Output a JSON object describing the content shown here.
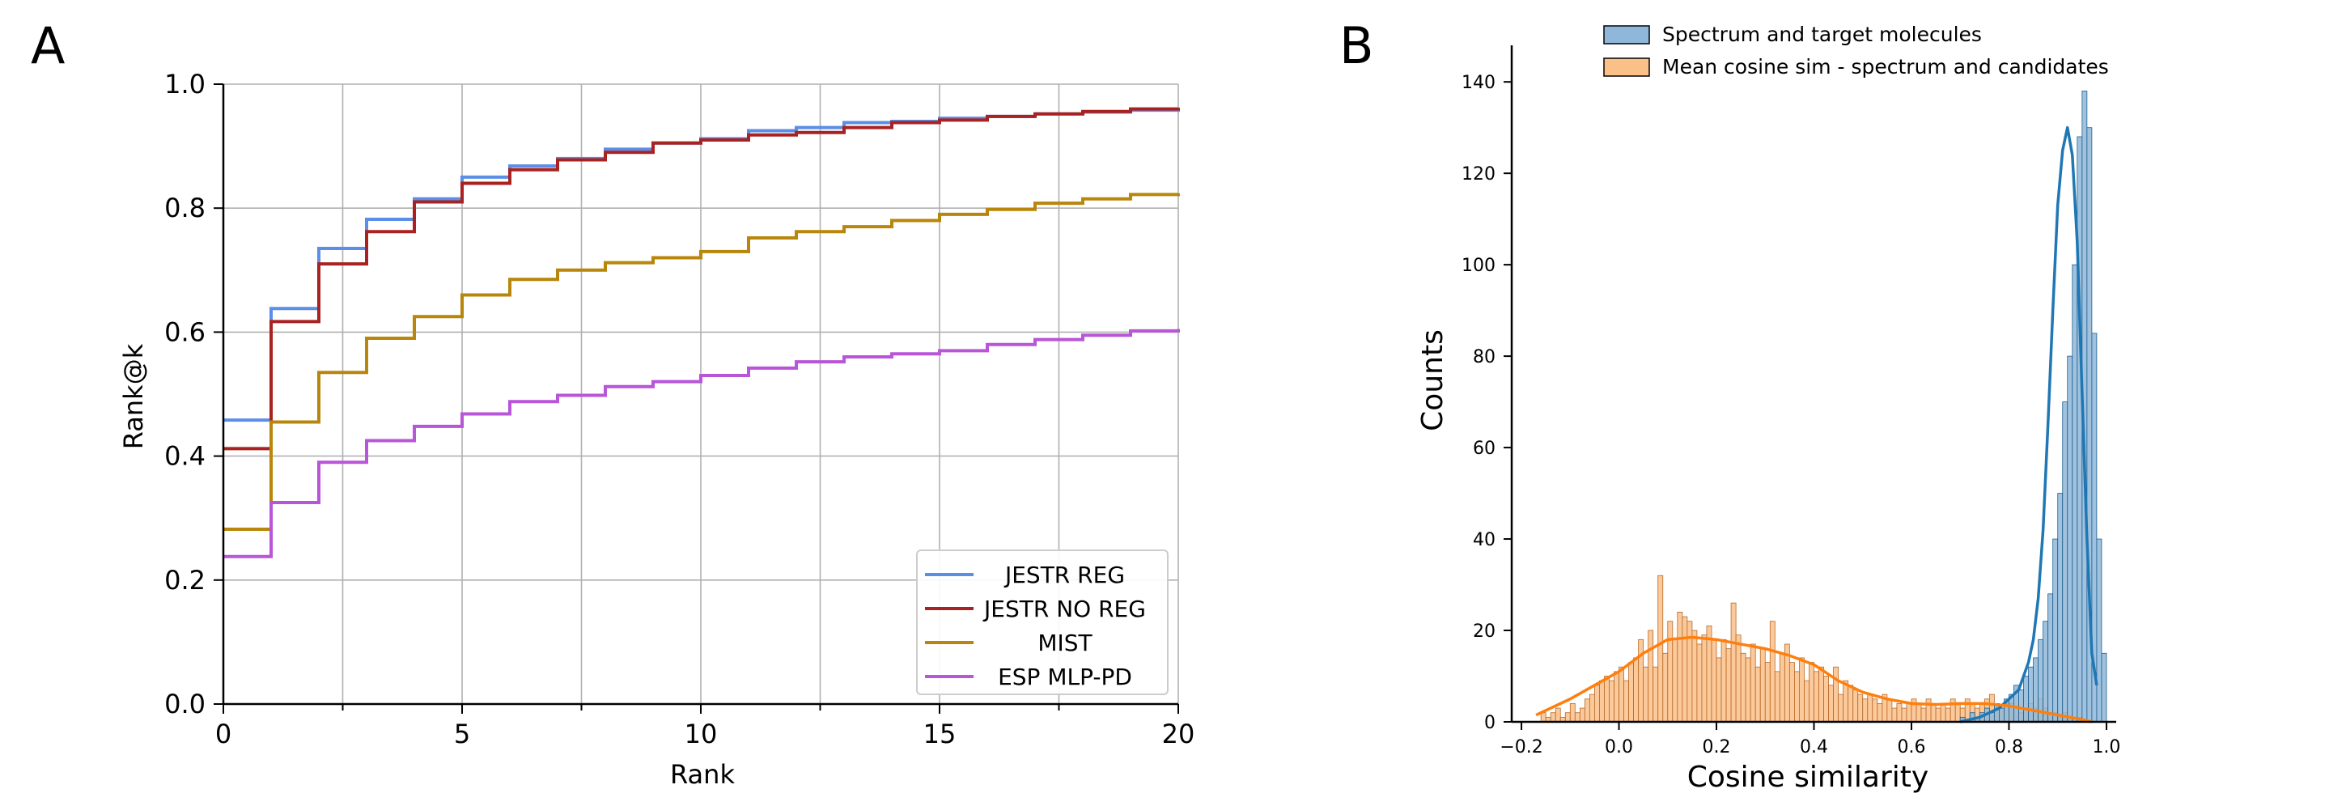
{
  "panels": {
    "a_label": "A",
    "b_label": "B"
  },
  "chart_data": [
    {
      "type": "line",
      "panel": "A",
      "title": "",
      "xlabel": "Rank",
      "ylabel": "Rank@k",
      "xlim": [
        0,
        20
      ],
      "ylim": [
        0,
        1.0
      ],
      "xticks": [
        0,
        5,
        10,
        15,
        20
      ],
      "xtick_labels": [
        "0",
        "5",
        "10",
        "15",
        "20"
      ],
      "yticks": [
        0.0,
        0.2,
        0.4,
        0.6,
        0.8,
        1.0
      ],
      "ytick_labels": [
        "0.0",
        "0.2",
        "0.4",
        "0.6",
        "0.8",
        "1.0"
      ],
      "grid": true,
      "step": true,
      "legend_position": "lower-right",
      "x": [
        0,
        1,
        2,
        3,
        4,
        5,
        6,
        7,
        8,
        9,
        10,
        11,
        12,
        13,
        14,
        15,
        16,
        17,
        18,
        19,
        20
      ],
      "series": [
        {
          "name": "JESTR REG",
          "color": "#5b8ee6",
          "values": [
            0.458,
            0.638,
            0.735,
            0.782,
            0.815,
            0.85,
            0.868,
            0.88,
            0.895,
            0.905,
            0.912,
            0.925,
            0.93,
            0.938,
            0.94,
            0.945,
            0.948,
            0.952,
            0.955,
            0.958,
            0.96
          ]
        },
        {
          "name": "JESTR NO REG",
          "color": "#a82222",
          "values": [
            0.412,
            0.617,
            0.71,
            0.762,
            0.81,
            0.84,
            0.862,
            0.878,
            0.89,
            0.905,
            0.91,
            0.918,
            0.922,
            0.93,
            0.938,
            0.942,
            0.948,
            0.952,
            0.956,
            0.96,
            0.962
          ]
        },
        {
          "name": "MIST",
          "color": "#b8860b",
          "values": [
            0.282,
            0.455,
            0.535,
            0.59,
            0.625,
            0.66,
            0.685,
            0.7,
            0.712,
            0.72,
            0.73,
            0.752,
            0.762,
            0.77,
            0.78,
            0.79,
            0.798,
            0.808,
            0.815,
            0.822,
            0.824
          ]
        },
        {
          "name": "ESP MLP-PD",
          "color": "#b855d8",
          "values": [
            0.238,
            0.325,
            0.39,
            0.425,
            0.448,
            0.468,
            0.488,
            0.498,
            0.512,
            0.52,
            0.53,
            0.542,
            0.552,
            0.56,
            0.565,
            0.57,
            0.58,
            0.588,
            0.595,
            0.602,
            0.605
          ]
        }
      ]
    },
    {
      "type": "histogram",
      "panel": "B",
      "title": "",
      "xlabel": "Cosine similarity",
      "ylabel": "Counts",
      "xlim": [
        -0.22,
        1.02
      ],
      "ylim": [
        0,
        148
      ],
      "xticks": [
        -0.2,
        0.0,
        0.2,
        0.4,
        0.6,
        0.8,
        1.0
      ],
      "xtick_labels": [
        "−0.2",
        "0.0",
        "0.2",
        "0.4",
        "0.6",
        "0.8",
        "1.0"
      ],
      "yticks": [
        0,
        20,
        40,
        60,
        80,
        100,
        120,
        140
      ],
      "ytick_labels": [
        "0",
        "20",
        "40",
        "60",
        "80",
        "100",
        "120",
        "140"
      ],
      "grid": false,
      "legend_position": "top",
      "bin_width": 0.01,
      "series": [
        {
          "name": "Spectrum and target molecules",
          "color": "#1f77b4",
          "bin_start": 0.7,
          "counts": [
            1,
            0,
            2,
            1,
            2,
            3,
            2,
            4,
            3,
            5,
            6,
            8,
            7,
            10,
            12,
            14,
            18,
            22,
            28,
            40,
            50,
            70,
            80,
            100,
            128,
            138,
            130,
            85,
            40,
            15
          ],
          "kde_x": [
            0.7,
            0.74,
            0.78,
            0.8,
            0.82,
            0.84,
            0.85,
            0.86,
            0.87,
            0.88,
            0.89,
            0.9,
            0.91,
            0.92,
            0.93,
            0.94,
            0.95,
            0.96,
            0.97,
            0.98
          ],
          "kde_y": [
            0,
            1,
            3,
            5,
            7,
            13,
            18,
            27,
            42,
            65,
            90,
            113,
            125,
            130,
            124,
            105,
            72,
            40,
            15,
            8
          ]
        },
        {
          "name": "Mean cosine sim - spectrum and candidates",
          "color": "#ff7f0e",
          "bin_start": -0.2,
          "counts": [
            0,
            0,
            0,
            0,
            2,
            1,
            2,
            3,
            1,
            2,
            4,
            2,
            3,
            5,
            6,
            8,
            9,
            10,
            9,
            11,
            12,
            9,
            13,
            14,
            18,
            12,
            20,
            12,
            32,
            15,
            22,
            18,
            24,
            23,
            22,
            20,
            17,
            19,
            21,
            18,
            14,
            18,
            16,
            26,
            19,
            15,
            14,
            17,
            12,
            16,
            13,
            22,
            11,
            15,
            17,
            13,
            11,
            14,
            9,
            13,
            11,
            12,
            10,
            8,
            12,
            6,
            9,
            8,
            7,
            6,
            5,
            6,
            5,
            4,
            6,
            5,
            3,
            4,
            3,
            4,
            5,
            4,
            3,
            5,
            4,
            3,
            4,
            3,
            5,
            4,
            3,
            5,
            4,
            3,
            4,
            5,
            6,
            4,
            3,
            4,
            4,
            3,
            2,
            3,
            4,
            3,
            5,
            3,
            2,
            2,
            1,
            2,
            1,
            1,
            1,
            0,
            0
          ],
          "kde_x": [
            -0.17,
            -0.1,
            -0.05,
            0.0,
            0.05,
            0.1,
            0.15,
            0.2,
            0.25,
            0.3,
            0.35,
            0.4,
            0.45,
            0.5,
            0.55,
            0.6,
            0.65,
            0.7,
            0.75,
            0.8,
            0.85,
            0.9,
            0.95,
            0.97
          ],
          "kde_y": [
            1.5,
            5,
            8,
            11,
            15,
            18,
            18.5,
            18,
            17,
            16,
            14.5,
            12.5,
            9,
            6.5,
            5,
            4,
            3.8,
            4,
            4,
            3.5,
            2.5,
            1.5,
            0.5,
            0
          ]
        }
      ]
    }
  ]
}
